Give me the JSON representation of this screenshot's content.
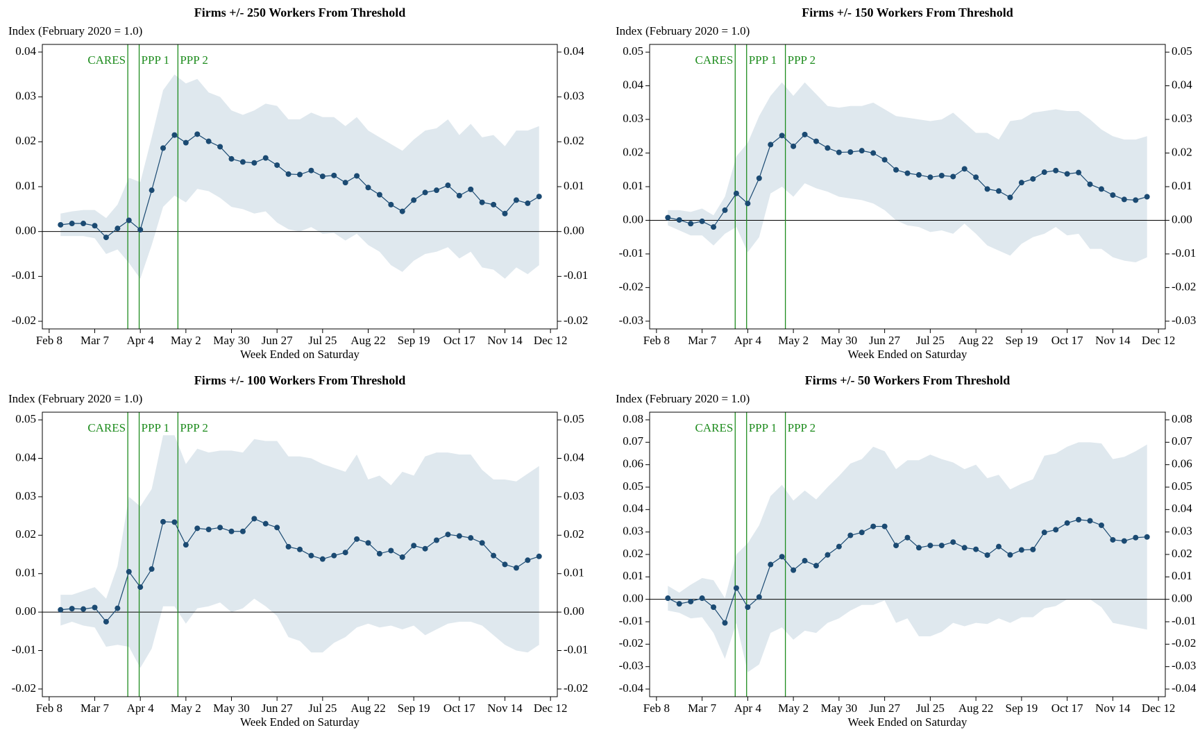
{
  "chart_data": [
    {
      "type": "line",
      "title": "Firms +/- 250 Workers From Threshold",
      "ylabel": "Index (February 2020 = 1.0)",
      "xlabel": "Week Ended on Saturday",
      "categories": [
        "Feb 8",
        null,
        null,
        null,
        "Mar 7",
        null,
        null,
        null,
        "Apr 4",
        null,
        null,
        null,
        "May 2",
        null,
        null,
        null,
        "May 30",
        null,
        null,
        null,
        "Jun 27",
        null,
        null,
        null,
        "Jul 25",
        null,
        null,
        null,
        "Aug 22",
        null,
        null,
        null,
        "Sep 19",
        null,
        null,
        null,
        "Oct 17",
        null,
        null,
        null,
        "Nov 14",
        null,
        null,
        null,
        "Dec 12"
      ],
      "series": [
        {
          "color": "#1b4a72",
          "values": [
            null,
            0.0015,
            0.0018,
            0.0018,
            0.0013,
            -0.0013,
            0.0007,
            0.0025,
            0.0004,
            0.0092,
            0.0186,
            0.0215,
            0.0198,
            0.0217,
            0.0201,
            0.0189,
            0.0162,
            0.0155,
            0.0153,
            0.0164,
            0.0148,
            0.0128,
            0.0127,
            0.0136,
            0.0123,
            0.0125,
            0.0109,
            0.0124,
            0.0098,
            0.0082,
            0.006,
            0.0045,
            0.007,
            0.0087,
            0.0092,
            0.0103,
            0.008,
            0.0094,
            0.0065,
            0.006,
            0.004,
            0.007,
            0.0063,
            0.0078,
            null
          ]
        }
      ],
      "band": {
        "color": "#dfe8ee",
        "upper": [
          null,
          0.004,
          0.0045,
          0.0048,
          0.0048,
          0.003,
          0.006,
          0.012,
          0.011,
          0.021,
          0.0315,
          0.035,
          0.033,
          0.034,
          0.031,
          0.03,
          0.027,
          0.026,
          0.027,
          0.0285,
          0.028,
          0.025,
          0.025,
          0.0265,
          0.0255,
          0.0255,
          0.0235,
          0.0255,
          0.0225,
          0.021,
          0.0195,
          0.018,
          0.0205,
          0.0225,
          0.023,
          0.025,
          0.0215,
          0.024,
          0.021,
          0.0215,
          0.019,
          0.0225,
          0.0225,
          0.0235,
          null
        ],
        "lower": [
          null,
          -0.001,
          -0.001,
          -0.001,
          -0.0015,
          -0.005,
          -0.004,
          -0.007,
          -0.0105,
          -0.003,
          0.0055,
          0.008,
          0.0065,
          0.0095,
          0.009,
          0.0075,
          0.0055,
          0.005,
          0.004,
          0.0045,
          0.002,
          0.0005,
          0,
          0.001,
          -0.0005,
          -0.0003,
          -0.002,
          -0.0005,
          -0.003,
          -0.0045,
          -0.0075,
          -0.009,
          -0.0065,
          -0.005,
          -0.0045,
          -0.0035,
          -0.006,
          -0.0045,
          -0.008,
          -0.0085,
          -0.0105,
          -0.008,
          -0.0095,
          -0.0075,
          null
        ]
      },
      "events": [
        {
          "label": "CARES",
          "x": 6.9
        },
        {
          "label": "PPP 1",
          "x": 7.9
        },
        {
          "label": "PPP 2",
          "x": 11.3
        }
      ],
      "event_color": "#1e8c1e",
      "ylim": [
        -0.0217,
        0.0417
      ],
      "yticks": [
        0.04,
        0.03,
        0.02,
        0.01,
        {
          "value": 0,
          "label": "0.00"
        },
        -0.01,
        -0.02
      ]
    },
    {
      "type": "line",
      "title": "Firms +/- 150 Workers From Threshold",
      "ylabel": "Index (February 2020 = 1.0)",
      "xlabel": "Week Ended on Saturday",
      "categories": [
        "Feb 8",
        null,
        null,
        null,
        "Mar 7",
        null,
        null,
        null,
        "Apr 4",
        null,
        null,
        null,
        "May 2",
        null,
        null,
        null,
        "May 30",
        null,
        null,
        null,
        "Jun 27",
        null,
        null,
        null,
        "Jul 25",
        null,
        null,
        null,
        "Aug 22",
        null,
        null,
        null,
        "Sep 19",
        null,
        null,
        null,
        "Oct 17",
        null,
        null,
        null,
        "Nov 14",
        null,
        null,
        null,
        "Dec 12"
      ],
      "series": [
        {
          "color": "#1b4a72",
          "values": [
            null,
            0.0008,
            0.0001,
            -0.001,
            -0.0003,
            -0.002,
            0.003,
            0.008,
            0.005,
            0.0125,
            0.0225,
            0.0252,
            0.022,
            0.0255,
            0.0235,
            0.0215,
            0.0202,
            0.0203,
            0.0207,
            0.02,
            0.018,
            0.015,
            0.014,
            0.0135,
            0.0128,
            0.0133,
            0.013,
            0.0153,
            0.0128,
            0.0093,
            0.0087,
            0.0068,
            0.0112,
            0.0123,
            0.0143,
            0.0148,
            0.0138,
            0.0142,
            0.0107,
            0.0093,
            0.0075,
            0.0062,
            0.006,
            0.007,
            null
          ]
        }
      ],
      "band": {
        "color": "#dfe8ee",
        "upper": [
          null,
          0.003,
          0.003,
          0.0025,
          0.0035,
          0.0015,
          0.007,
          0.019,
          0.023,
          0.031,
          0.037,
          0.041,
          0.037,
          0.041,
          0.0375,
          0.034,
          0.0335,
          0.034,
          0.034,
          0.035,
          0.033,
          0.031,
          0.0305,
          0.03,
          0.0295,
          0.03,
          0.032,
          0.029,
          0.026,
          0.026,
          0.024,
          0.0295,
          0.03,
          0.032,
          0.0325,
          0.033,
          0.0325,
          0.0325,
          0.03,
          0.027,
          0.025,
          0.024,
          0.024,
          0.025,
          null
        ],
        "lower": [
          null,
          -0.0015,
          -0.003,
          -0.0045,
          -0.0045,
          -0.0075,
          -0.004,
          -0.002,
          -0.0095,
          -0.005,
          0.008,
          0.01,
          0.007,
          0.011,
          0.0095,
          0.0085,
          0.007,
          0.0065,
          0.006,
          0.005,
          0.003,
          0,
          -0.0015,
          -0.002,
          -0.0035,
          -0.003,
          -0.004,
          -0.001,
          -0.004,
          -0.0075,
          -0.009,
          -0.0105,
          -0.007,
          -0.005,
          -0.004,
          -0.002,
          -0.0045,
          -0.004,
          -0.0085,
          -0.0085,
          -0.011,
          -0.012,
          -0.0125,
          -0.011,
          null
        ]
      },
      "events": [
        {
          "label": "CARES",
          "x": 6.9
        },
        {
          "label": "PPP 1",
          "x": 7.9
        },
        {
          "label": "PPP 2",
          "x": 11.3
        }
      ],
      "event_color": "#1e8c1e",
      "ylim": [
        -0.0323,
        0.0523
      ],
      "yticks": [
        0.05,
        0.04,
        0.03,
        0.02,
        0.01,
        {
          "value": 0,
          "label": "0.00"
        },
        -0.01,
        -0.02,
        -0.03
      ]
    },
    {
      "type": "line",
      "title": "Firms +/- 100 Workers From Threshold",
      "ylabel": "Index (February 2020 = 1.0)",
      "xlabel": "Week Ended on Saturday",
      "categories": [
        "Feb 8",
        null,
        null,
        null,
        "Mar 7",
        null,
        null,
        null,
        "Apr 4",
        null,
        null,
        null,
        "May 2",
        null,
        null,
        null,
        "May 30",
        null,
        null,
        null,
        "Jun 27",
        null,
        null,
        null,
        "Jul 25",
        null,
        null,
        null,
        "Aug 22",
        null,
        null,
        null,
        "Sep 19",
        null,
        null,
        null,
        "Oct 17",
        null,
        null,
        null,
        "Nov 14",
        null,
        null,
        null,
        "Dec 12"
      ],
      "series": [
        {
          "color": "#1b4a72",
          "values": [
            null,
            0.0006,
            0.0009,
            0.0008,
            0.0012,
            -0.0025,
            0.001,
            0.0105,
            0.0065,
            0.0112,
            0.0235,
            0.0234,
            0.0175,
            0.0218,
            0.0215,
            0.022,
            0.021,
            0.021,
            0.0243,
            0.023,
            0.022,
            0.017,
            0.0163,
            0.0147,
            0.0138,
            0.0147,
            0.0155,
            0.019,
            0.018,
            0.0152,
            0.016,
            0.0143,
            0.0173,
            0.0165,
            0.0187,
            0.0202,
            0.0198,
            0.0193,
            0.018,
            0.0147,
            0.0124,
            0.0115,
            0.0135,
            0.0145,
            null
          ]
        }
      ],
      "band": {
        "color": "#dfe8ee",
        "upper": [
          null,
          0.0045,
          0.0045,
          0.0055,
          0.0065,
          0.0035,
          0.012,
          0.03,
          0.0275,
          0.032,
          0.046,
          0.046,
          0.0385,
          0.0425,
          0.0415,
          0.042,
          0.042,
          0.0415,
          0.045,
          0.0445,
          0.0445,
          0.0405,
          0.0405,
          0.04,
          0.0385,
          0.0375,
          0.0365,
          0.041,
          0.0345,
          0.0355,
          0.033,
          0.0365,
          0.0355,
          0.0405,
          0.0415,
          0.0415,
          0.041,
          0.041,
          0.037,
          0.0345,
          0.0345,
          0.034,
          0.036,
          0.038,
          null
        ],
        "lower": [
          null,
          -0.0035,
          -0.0025,
          -0.0035,
          -0.004,
          -0.009,
          -0.0085,
          -0.009,
          -0.0145,
          -0.0095,
          0.0015,
          0.0015,
          -0.003,
          0.001,
          0.0015,
          0.0025,
          0,
          0.001,
          0.0035,
          0.0015,
          -0.001,
          -0.0065,
          -0.0075,
          -0.0105,
          -0.0105,
          -0.008,
          -0.0065,
          -0.004,
          -0.003,
          -0.004,
          -0.0035,
          -0.0045,
          -0.0035,
          -0.006,
          -0.0045,
          -0.003,
          -0.0025,
          -0.0025,
          -0.0035,
          -0.006,
          -0.0085,
          -0.01,
          -0.0105,
          -0.0085,
          null
        ]
      },
      "events": [
        {
          "label": "CARES",
          "x": 6.9
        },
        {
          "label": "PPP 1",
          "x": 7.9
        },
        {
          "label": "PPP 2",
          "x": 11.3
        }
      ],
      "event_color": "#1e8c1e",
      "ylim": [
        -0.022,
        0.052
      ],
      "yticks": [
        0.05,
        0.04,
        0.03,
        0.02,
        0.01,
        {
          "value": 0,
          "label": "0.00"
        },
        -0.01,
        -0.02
      ]
    },
    {
      "type": "line",
      "title": "Firms +/- 50 Workers From Threshold",
      "ylabel": "Index (February 2020 = 1.0)",
      "xlabel": "Week Ended on Saturday",
      "categories": [
        "Feb 8",
        null,
        null,
        null,
        "Mar 7",
        null,
        null,
        null,
        "Apr 4",
        null,
        null,
        null,
        "May 2",
        null,
        null,
        null,
        "May 30",
        null,
        null,
        null,
        "Jun 27",
        null,
        null,
        null,
        "Jul 25",
        null,
        null,
        null,
        "Aug 22",
        null,
        null,
        null,
        "Sep 19",
        null,
        null,
        null,
        "Oct 17",
        null,
        null,
        null,
        "Nov 14",
        null,
        null,
        null,
        "Dec 12"
      ],
      "series": [
        {
          "color": "#1b4a72",
          "values": [
            null,
            0.0005,
            -0.002,
            -0.001,
            0.0005,
            -0.0035,
            -0.0105,
            0.005,
            -0.0035,
            0.001,
            0.0155,
            0.019,
            0.013,
            0.0172,
            0.015,
            0.0198,
            0.0235,
            0.0285,
            0.0298,
            0.0325,
            0.0325,
            0.024,
            0.0275,
            0.023,
            0.024,
            0.024,
            0.0255,
            0.023,
            0.0223,
            0.0197,
            0.0235,
            0.0198,
            0.022,
            0.0222,
            0.0298,
            0.031,
            0.034,
            0.0355,
            0.035,
            0.033,
            0.0265,
            0.026,
            0.0275,
            0.0278,
            null
          ]
        }
      ],
      "band": {
        "color": "#dfe8ee",
        "upper": [
          null,
          0.006,
          0.003,
          0.0065,
          0.0095,
          0.0085,
          0.0005,
          0.02,
          0.025,
          0.033,
          0.046,
          0.051,
          0.044,
          0.0485,
          0.0445,
          0.05,
          0.055,
          0.0605,
          0.0625,
          0.068,
          0.066,
          0.058,
          0.062,
          0.062,
          0.0645,
          0.0625,
          0.061,
          0.058,
          0.06,
          0.054,
          0.0555,
          0.049,
          0.0515,
          0.0535,
          0.064,
          0.065,
          0.068,
          0.07,
          0.07,
          0.0695,
          0.0625,
          0.0635,
          0.066,
          0.069,
          null
        ],
        "lower": [
          null,
          -0.005,
          -0.006,
          -0.0085,
          -0.008,
          -0.015,
          -0.0265,
          -0.0105,
          -0.0325,
          -0.029,
          -0.015,
          -0.0125,
          -0.018,
          -0.014,
          -0.015,
          -0.0105,
          -0.0085,
          -0.005,
          -0.0025,
          -0.0025,
          -0.0005,
          -0.0105,
          -0.0085,
          -0.0165,
          -0.0165,
          -0.0145,
          -0.0105,
          -0.012,
          -0.0105,
          -0.011,
          -0.0085,
          -0.0105,
          -0.008,
          -0.008,
          -0.004,
          -0.003,
          0,
          0,
          0,
          -0.0035,
          -0.0105,
          -0.0115,
          -0.0125,
          -0.0135,
          null
        ]
      },
      "events": [
        {
          "label": "CARES",
          "x": 6.9
        },
        {
          "label": "PPP 1",
          "x": 7.9
        },
        {
          "label": "PPP 2",
          "x": 11.3
        }
      ],
      "event_color": "#1e8c1e",
      "ylim": [
        -0.0434,
        0.0834
      ],
      "yticks": [
        0.08,
        0.07,
        0.06,
        0.05,
        0.04,
        0.03,
        0.02,
        0.01,
        {
          "value": 0,
          "label": "0.00"
        },
        -0.01,
        -0.02,
        -0.03,
        -0.04
      ]
    }
  ]
}
